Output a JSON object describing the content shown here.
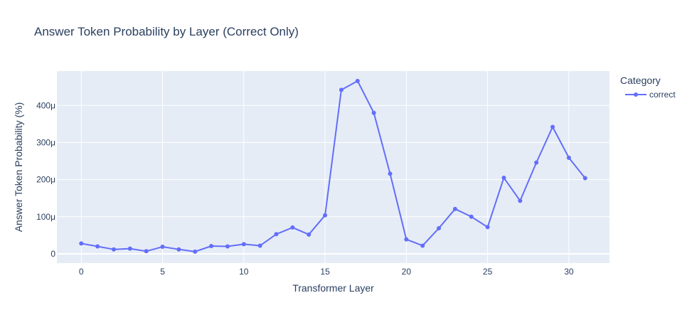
{
  "chart_data": {
    "type": "line",
    "title": "Answer Token Probability by Layer (Correct Only)",
    "xlabel": "Transformer Layer",
    "ylabel": "Answer Token Probability (%)",
    "xlim": [
      -1.5,
      32.5
    ],
    "ylim": [
      -2.5e-05,
      0.0004925
    ],
    "x_ticks": [
      0,
      5,
      10,
      15,
      20,
      25,
      30
    ],
    "y_ticks": [
      0,
      0.0001,
      0.0002,
      0.0003,
      0.0004
    ],
    "y_tick_labels": [
      "0",
      "100μ",
      "200μ",
      "300μ",
      "400μ"
    ],
    "grid": true,
    "legend": {
      "title": "Category",
      "placement": "right"
    },
    "colors": {
      "plot_bg": "#e5ecf6",
      "grid": "#ffffff",
      "text": "#2a3f5f"
    },
    "series": [
      {
        "name": "correct",
        "color": "#636efa",
        "x": [
          0,
          1,
          2,
          3,
          4,
          5,
          6,
          7,
          8,
          9,
          10,
          11,
          12,
          13,
          14,
          15,
          16,
          17,
          18,
          19,
          20,
          21,
          22,
          23,
          24,
          25,
          26,
          27,
          28,
          29,
          30,
          31
        ],
        "y": [
          2.8e-05,
          2e-05,
          1.2e-05,
          1.4e-05,
          7e-06,
          1.9e-05,
          1.2e-05,
          6e-06,
          2.1e-05,
          2e-05,
          2.6e-05,
          2.2e-05,
          5.3e-05,
          7.1e-05,
          5.2e-05,
          0.000104,
          0.000442,
          0.000466,
          0.00038,
          0.000216,
          3.9e-05,
          2.2e-05,
          6.9e-05,
          0.000121,
          0.0001,
          7.2e-05,
          0.000205,
          0.000143,
          0.000246,
          0.000342,
          0.000259,
          0.000204
        ]
      }
    ]
  }
}
